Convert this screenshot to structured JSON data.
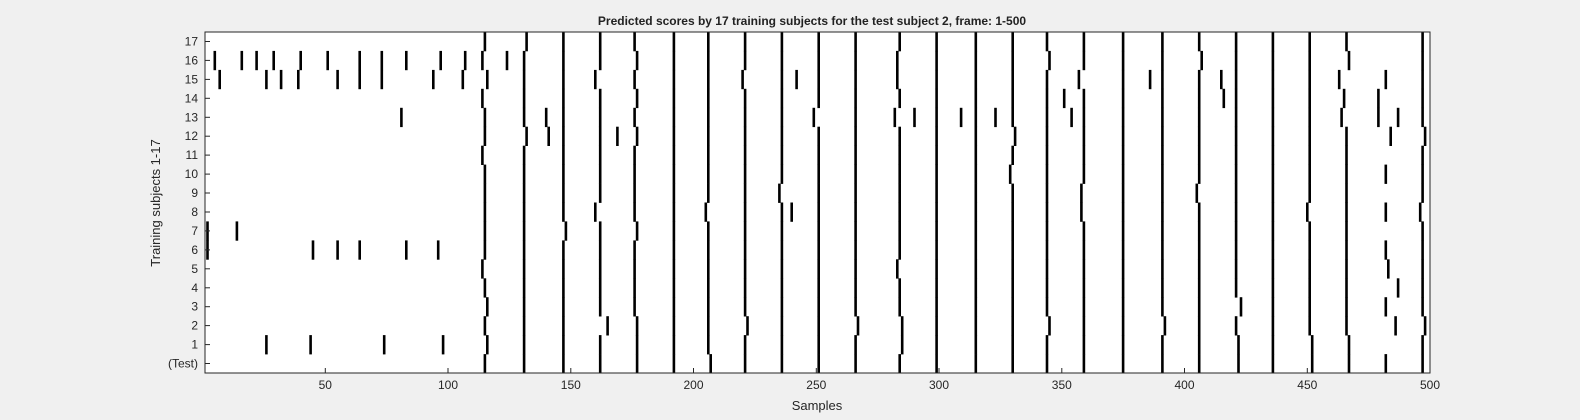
{
  "chart_data": {
    "type": "heatmap",
    "title": "Predicted scores by 17 training subjects for the test subject 2, frame: 1-500",
    "xlabel": "Samples",
    "ylabel": "Training subjects 1-17",
    "xlim": [
      1,
      500
    ],
    "x_ticks": [
      50,
      100,
      150,
      200,
      250,
      300,
      350,
      400,
      450,
      500
    ],
    "rows": [
      {
        "label": "(Test)",
        "spikes": [
          115,
          131,
          147,
          162,
          177,
          192,
          207,
          221,
          236,
          251,
          266,
          284,
          299,
          315,
          330,
          344,
          359,
          375,
          391,
          406,
          422,
          436,
          452,
          467,
          482,
          497
        ]
      },
      {
        "label": "1",
        "spikes": [
          26,
          44,
          74,
          98,
          116,
          131,
          147,
          162,
          177,
          192,
          206,
          221,
          236,
          251,
          266,
          285,
          299,
          315,
          330,
          344,
          359,
          375,
          391,
          406,
          422,
          436,
          452,
          467,
          497
        ]
      },
      {
        "label": "2",
        "spikes": [
          115,
          131,
          147,
          165,
          177,
          192,
          206,
          222,
          236,
          251,
          267,
          285,
          299,
          315,
          330,
          345,
          359,
          375,
          392,
          406,
          421,
          436,
          451,
          466,
          486,
          498
        ]
      },
      {
        "label": "3",
        "spikes": [
          116,
          131,
          147,
          162,
          176,
          192,
          206,
          221,
          236,
          251,
          266,
          284,
          299,
          315,
          330,
          344,
          359,
          375,
          391,
          406,
          423,
          436,
          451,
          466,
          482,
          497
        ]
      },
      {
        "label": "4",
        "spikes": [
          115,
          131,
          147,
          162,
          176,
          192,
          206,
          221,
          236,
          251,
          266,
          284,
          299,
          315,
          330,
          344,
          359,
          375,
          391,
          406,
          421,
          436,
          451,
          466,
          487,
          497
        ]
      },
      {
        "label": "5",
        "spikes": [
          114,
          131,
          147,
          162,
          176,
          192,
          206,
          221,
          236,
          251,
          266,
          283,
          299,
          315,
          330,
          344,
          359,
          375,
          391,
          406,
          421,
          436,
          451,
          466,
          483,
          497
        ]
      },
      {
        "label": "6",
        "spikes": [
          2,
          45,
          55,
          64,
          83,
          96,
          115,
          131,
          147,
          162,
          176,
          192,
          206,
          221,
          236,
          251,
          266,
          284,
          299,
          315,
          330,
          344,
          359,
          375,
          391,
          406,
          421,
          436,
          451,
          466,
          482,
          497
        ]
      },
      {
        "label": "7",
        "spikes": [
          2,
          14,
          115,
          131,
          148,
          162,
          177,
          192,
          206,
          221,
          236,
          251,
          266,
          284,
          299,
          315,
          330,
          344,
          359,
          375,
          391,
          406,
          421,
          436,
          451,
          466,
          497
        ]
      },
      {
        "label": "8",
        "spikes": [
          115,
          131,
          147,
          160,
          176,
          192,
          205,
          221,
          236,
          240,
          251,
          266,
          284,
          299,
          315,
          330,
          344,
          358,
          375,
          391,
          406,
          421,
          436,
          450,
          466,
          482,
          496
        ]
      },
      {
        "label": "9",
        "spikes": [
          115,
          131,
          147,
          162,
          176,
          192,
          206,
          221,
          235,
          251,
          266,
          284,
          299,
          315,
          330,
          344,
          358,
          375,
          391,
          405,
          421,
          436,
          451,
          466,
          497
        ]
      },
      {
        "label": "10",
        "spikes": [
          115,
          131,
          147,
          162,
          176,
          192,
          206,
          221,
          236,
          251,
          266,
          284,
          299,
          315,
          329,
          344,
          359,
          375,
          391,
          406,
          421,
          436,
          451,
          466,
          482,
          497
        ]
      },
      {
        "label": "11",
        "spikes": [
          114,
          131,
          147,
          162,
          176,
          192,
          206,
          221,
          236,
          251,
          266,
          284,
          299,
          315,
          330,
          344,
          359,
          375,
          391,
          406,
          421,
          436,
          451,
          466,
          497
        ]
      },
      {
        "label": "12",
        "spikes": [
          115,
          132,
          141,
          147,
          162,
          169,
          177,
          192,
          206,
          221,
          236,
          251,
          266,
          284,
          299,
          315,
          331,
          344,
          359,
          375,
          391,
          406,
          421,
          436,
          451,
          466,
          484,
          498
        ]
      },
      {
        "label": "13",
        "spikes": [
          81,
          115,
          131,
          140,
          147,
          162,
          176,
          192,
          206,
          221,
          236,
          249,
          266,
          282,
          290,
          299,
          309,
          315,
          323,
          330,
          344,
          354,
          359,
          375,
          391,
          406,
          421,
          436,
          451,
          464,
          479,
          487,
          497
        ]
      },
      {
        "label": "14",
        "spikes": [
          114,
          131,
          147,
          162,
          177,
          192,
          206,
          221,
          236,
          251,
          266,
          284,
          299,
          315,
          330,
          344,
          351,
          359,
          375,
          391,
          406,
          416,
          421,
          436,
          451,
          465,
          479,
          497
        ]
      },
      {
        "label": "15",
        "spikes": [
          7,
          26,
          32,
          39,
          55,
          64,
          73,
          94,
          106,
          116,
          131,
          147,
          160,
          176,
          192,
          206,
          220,
          236,
          242,
          251,
          266,
          283,
          299,
          315,
          330,
          344,
          357,
          375,
          386,
          391,
          406,
          415,
          421,
          436,
          451,
          463,
          482,
          497
        ]
      },
      {
        "label": "16",
        "spikes": [
          5,
          16,
          22,
          29,
          40,
          51,
          64,
          73,
          83,
          97,
          107,
          114,
          124,
          131,
          147,
          162,
          177,
          192,
          206,
          221,
          236,
          251,
          266,
          283,
          299,
          315,
          330,
          345,
          359,
          375,
          391,
          407,
          421,
          436,
          451,
          467,
          497
        ]
      },
      {
        "label": "17",
        "spikes": [
          115,
          132,
          147,
          162,
          176,
          192,
          206,
          221,
          236,
          251,
          266,
          284,
          299,
          315,
          330,
          344,
          359,
          375,
          391,
          406,
          421,
          436,
          451,
          466,
          497
        ]
      }
    ]
  }
}
